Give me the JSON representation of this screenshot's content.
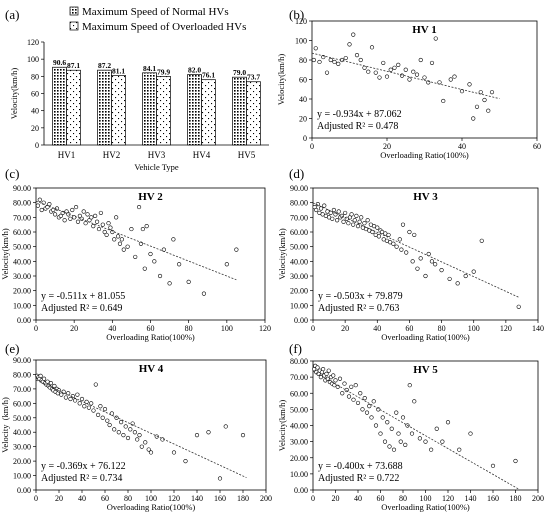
{
  "chart_data": [
    {
      "panel_label": "(a)",
      "type": "bar",
      "title": "",
      "xlabel": "Vehicle Type",
      "ylabel": "Velocity(km/h)",
      "ylim": [
        0,
        120
      ],
      "yticks": [
        0,
        20,
        40,
        60,
        80,
        100,
        120
      ],
      "categories": [
        "HV1",
        "HV2",
        "HV3",
        "HV4",
        "HV5"
      ],
      "series": [
        {
          "name": "Maximum Speed of Normal HVs",
          "values": [
            90.6,
            87.2,
            84.1,
            82.0,
            79.0
          ],
          "labels": [
            "90.6",
            "87.2",
            "84.1",
            "82.0",
            "79.0"
          ]
        },
        {
          "name": "Maximum Speed of Overloaded HVs",
          "values": [
            87.1,
            81.1,
            79.9,
            76.1,
            73.7
          ],
          "labels": [
            "87.1",
            "81.1",
            "79.9",
            "76.1",
            "73.7"
          ]
        }
      ]
    },
    {
      "panel_label": "(b)",
      "type": "scatter",
      "title": "HV 1",
      "xlabel": "Overloading Ratio(100%)",
      "ylabel": "Velocity(km/h)",
      "xlim": [
        0,
        60
      ],
      "ylim": [
        0,
        120
      ],
      "xticks": [
        0,
        20,
        40,
        60
      ],
      "yticks": [
        0,
        20,
        40,
        60,
        80,
        100,
        120
      ],
      "equation": "y = -0.934x + 87.062",
      "r2": "Adjusted R² = 0.478",
      "fit": {
        "slope": -0.934,
        "intercept": 87.062,
        "x_range": [
          0,
          50
        ]
      },
      "x": [
        0.5,
        1,
        2,
        3,
        4,
        5,
        6,
        7,
        8,
        9,
        10,
        11,
        12,
        13,
        14,
        15,
        16,
        17,
        18,
        19,
        20,
        21,
        22,
        23,
        24,
        25,
        26,
        27,
        28,
        29,
        30,
        31,
        32,
        33,
        34,
        35,
        37,
        38,
        40,
        42,
        43,
        44,
        45,
        46,
        47,
        48
      ],
      "y": [
        80,
        92,
        78,
        83,
        67,
        80,
        78,
        76,
        80,
        82,
        96,
        106,
        85,
        80,
        72,
        68,
        93,
        67,
        62,
        77,
        63,
        70,
        72,
        75,
        64,
        70,
        60,
        68,
        65,
        80,
        62,
        57,
        77,
        102,
        57,
        38,
        60,
        63,
        48,
        55,
        20,
        32,
        47,
        39,
        28,
        47
      ]
    },
    {
      "panel_label": "(c)",
      "type": "scatter",
      "title": "HV 2",
      "xlabel": "Overloading Ratio(100%)",
      "ylabel": "Velocity(km/h)",
      "xlim": [
        0,
        120
      ],
      "ylim": [
        0,
        90
      ],
      "xticks": [
        0,
        20,
        40,
        60,
        80,
        100,
        120
      ],
      "yticks": [
        0,
        10,
        20,
        30,
        40,
        50,
        60,
        70,
        80,
        90
      ],
      "equation": "y = -0.511x + 81.055",
      "r2": "Adjusted R² = 0.649",
      "fit": {
        "slope": -0.511,
        "intercept": 81.055,
        "x_range": [
          0,
          105
        ]
      },
      "x": [
        1,
        2,
        3,
        4,
        5,
        6,
        7,
        8,
        9,
        10,
        11,
        12,
        13,
        14,
        15,
        16,
        17,
        18,
        19,
        20,
        21,
        22,
        23,
        24,
        25,
        26,
        27,
        28,
        29,
        30,
        31,
        32,
        33,
        34,
        35,
        36,
        37,
        38,
        39,
        40,
        41,
        42,
        43,
        44,
        45,
        46,
        48,
        50,
        52,
        54,
        55,
        56,
        57,
        58,
        60,
        62,
        65,
        67,
        70,
        72,
        75,
        80,
        88,
        100,
        105
      ],
      "y": [
        78,
        82,
        75,
        80,
        76,
        77,
        79,
        74,
        75,
        72,
        76,
        70,
        71,
        73,
        68,
        74,
        72,
        69,
        75,
        70,
        77,
        67,
        71,
        69,
        74,
        66,
        72,
        68,
        70,
        64,
        71,
        67,
        62,
        73,
        65,
        60,
        58,
        66,
        63,
        60,
        55,
        70,
        57,
        52,
        55,
        48,
        50,
        62,
        43,
        77,
        52,
        62,
        35,
        64,
        45,
        40,
        30,
        48,
        25,
        55,
        38,
        26,
        18,
        38,
        48
      ]
    },
    {
      "panel_label": "(d)",
      "type": "scatter",
      "title": "HV 3",
      "xlabel": "Overloading Ratio(100%)",
      "ylabel": "Velocity(km/h)",
      "xlim": [
        0,
        140
      ],
      "ylim": [
        0,
        90
      ],
      "xticks": [
        0,
        20,
        40,
        60,
        80,
        100,
        120,
        140
      ],
      "yticks": [
        0,
        10,
        20,
        30,
        40,
        50,
        60,
        70,
        80,
        90
      ],
      "equation": "y = -0.503x + 79.879",
      "r2": "Adjusted R² = 0.763",
      "fit": {
        "slope": -0.503,
        "intercept": 79.879,
        "x_range": [
          0,
          128
        ]
      },
      "x": [
        1,
        2,
        3,
        4,
        5,
        6,
        7,
        8,
        9,
        10,
        11,
        12,
        13,
        14,
        15,
        16,
        17,
        18,
        19,
        20,
        21,
        22,
        23,
        24,
        25,
        26,
        27,
        28,
        29,
        30,
        31,
        32,
        33,
        34,
        35,
        36,
        37,
        38,
        39,
        40,
        41,
        42,
        43,
        44,
        45,
        46,
        47,
        48,
        50,
        52,
        54,
        55,
        56,
        58,
        60,
        62,
        63,
        65,
        67,
        70,
        72,
        74,
        76,
        80,
        85,
        90,
        95,
        100,
        105,
        128
      ],
      "y": [
        77,
        75,
        79,
        73,
        76,
        72,
        78,
        71,
        74,
        70,
        73,
        69,
        75,
        72,
        68,
        74,
        70,
        71,
        67,
        73,
        69,
        66,
        70,
        72,
        65,
        68,
        71,
        64,
        67,
        70,
        63,
        66,
        62,
        68,
        61,
        65,
        60,
        64,
        58,
        63,
        57,
        61,
        60,
        55,
        59,
        54,
        58,
        53,
        52,
        50,
        55,
        48,
        65,
        46,
        60,
        40,
        58,
        35,
        42,
        30,
        45,
        40,
        38,
        34,
        28,
        25,
        30,
        33,
        54,
        9
      ]
    },
    {
      "panel_label": "(e)",
      "type": "scatter",
      "title": "HV 4",
      "xlabel": "Overloading Ratio(100%)",
      "ylabel": "Velocity  (km/h)",
      "xlim": [
        0,
        200
      ],
      "ylim": [
        0,
        90
      ],
      "xticks": [
        0,
        20,
        40,
        60,
        80,
        100,
        120,
        140,
        160,
        180,
        200
      ],
      "yticks": [
        0,
        10,
        20,
        30,
        40,
        50,
        60,
        70,
        80,
        90
      ],
      "equation": "y = -0.369x + 76.122",
      "r2": "Adjusted R² = 0.734",
      "fit": {
        "slope": -0.369,
        "intercept": 76.122,
        "x_range": [
          0,
          183
        ]
      },
      "x": [
        1,
        2,
        3,
        4,
        5,
        6,
        7,
        8,
        9,
        10,
        11,
        12,
        13,
        14,
        15,
        16,
        17,
        18,
        19,
        20,
        22,
        24,
        26,
        28,
        30,
        32,
        34,
        36,
        38,
        40,
        42,
        44,
        46,
        48,
        50,
        52,
        54,
        56,
        58,
        60,
        62,
        64,
        66,
        68,
        70,
        72,
        74,
        76,
        78,
        80,
        82,
        84,
        86,
        88,
        90,
        92,
        95,
        98,
        100,
        105,
        110,
        120,
        130,
        140,
        150,
        160,
        165,
        180
      ],
      "y": [
        79,
        78,
        77,
        79,
        76,
        75,
        77,
        74,
        73,
        75,
        72,
        71,
        74,
        70,
        69,
        72,
        68,
        70,
        67,
        69,
        66,
        68,
        64,
        67,
        63,
        65,
        62,
        66,
        60,
        63,
        58,
        61,
        57,
        60,
        55,
        73,
        52,
        58,
        50,
        56,
        48,
        45,
        53,
        42,
        50,
        40,
        47,
        38,
        44,
        36,
        42,
        46,
        40,
        35,
        38,
        30,
        33,
        28,
        26,
        37,
        35,
        26,
        20,
        38,
        40,
        8,
        44,
        38
      ]
    },
    {
      "panel_label": "(f)",
      "type": "scatter",
      "title": "HV 5",
      "xlabel": "Overloading Ratio(100%)",
      "ylabel": "Velocity(km/h)",
      "xlim": [
        0,
        200
      ],
      "ylim": [
        0,
        80
      ],
      "xticks": [
        0,
        20,
        40,
        60,
        80,
        100,
        120,
        140,
        160,
        180,
        200
      ],
      "yticks": [
        0,
        10,
        20,
        30,
        40,
        50,
        60,
        70,
        80
      ],
      "equation": "y = -0.400x + 73.688",
      "r2": "Adjusted R² = 0.722",
      "fit": {
        "slope": -0.4,
        "intercept": 73.688,
        "x_range": [
          0,
          183
        ]
      },
      "x": [
        1,
        2,
        3,
        4,
        5,
        6,
        7,
        8,
        9,
        10,
        11,
        12,
        13,
        14,
        15,
        16,
        17,
        18,
        19,
        20,
        22,
        24,
        26,
        28,
        30,
        32,
        34,
        36,
        38,
        40,
        42,
        44,
        46,
        48,
        50,
        52,
        54,
        56,
        58,
        60,
        62,
        64,
        66,
        68,
        70,
        72,
        74,
        76,
        78,
        80,
        82,
        84,
        86,
        88,
        90,
        95,
        100,
        105,
        110,
        115,
        120,
        130,
        140,
        160,
        180
      ],
      "y": [
        75,
        77,
        73,
        76,
        72,
        74,
        70,
        73,
        75,
        71,
        68,
        72,
        69,
        74,
        67,
        70,
        66,
        71,
        65,
        68,
        64,
        69,
        60,
        66,
        62,
        58,
        64,
        56,
        65,
        54,
        60,
        50,
        57,
        48,
        52,
        45,
        55,
        40,
        50,
        35,
        45,
        30,
        42,
        27,
        38,
        25,
        48,
        35,
        30,
        45,
        28,
        40,
        65,
        35,
        55,
        32,
        30,
        25,
        38,
        30,
        42,
        25,
        35,
        15,
        18
      ]
    }
  ]
}
